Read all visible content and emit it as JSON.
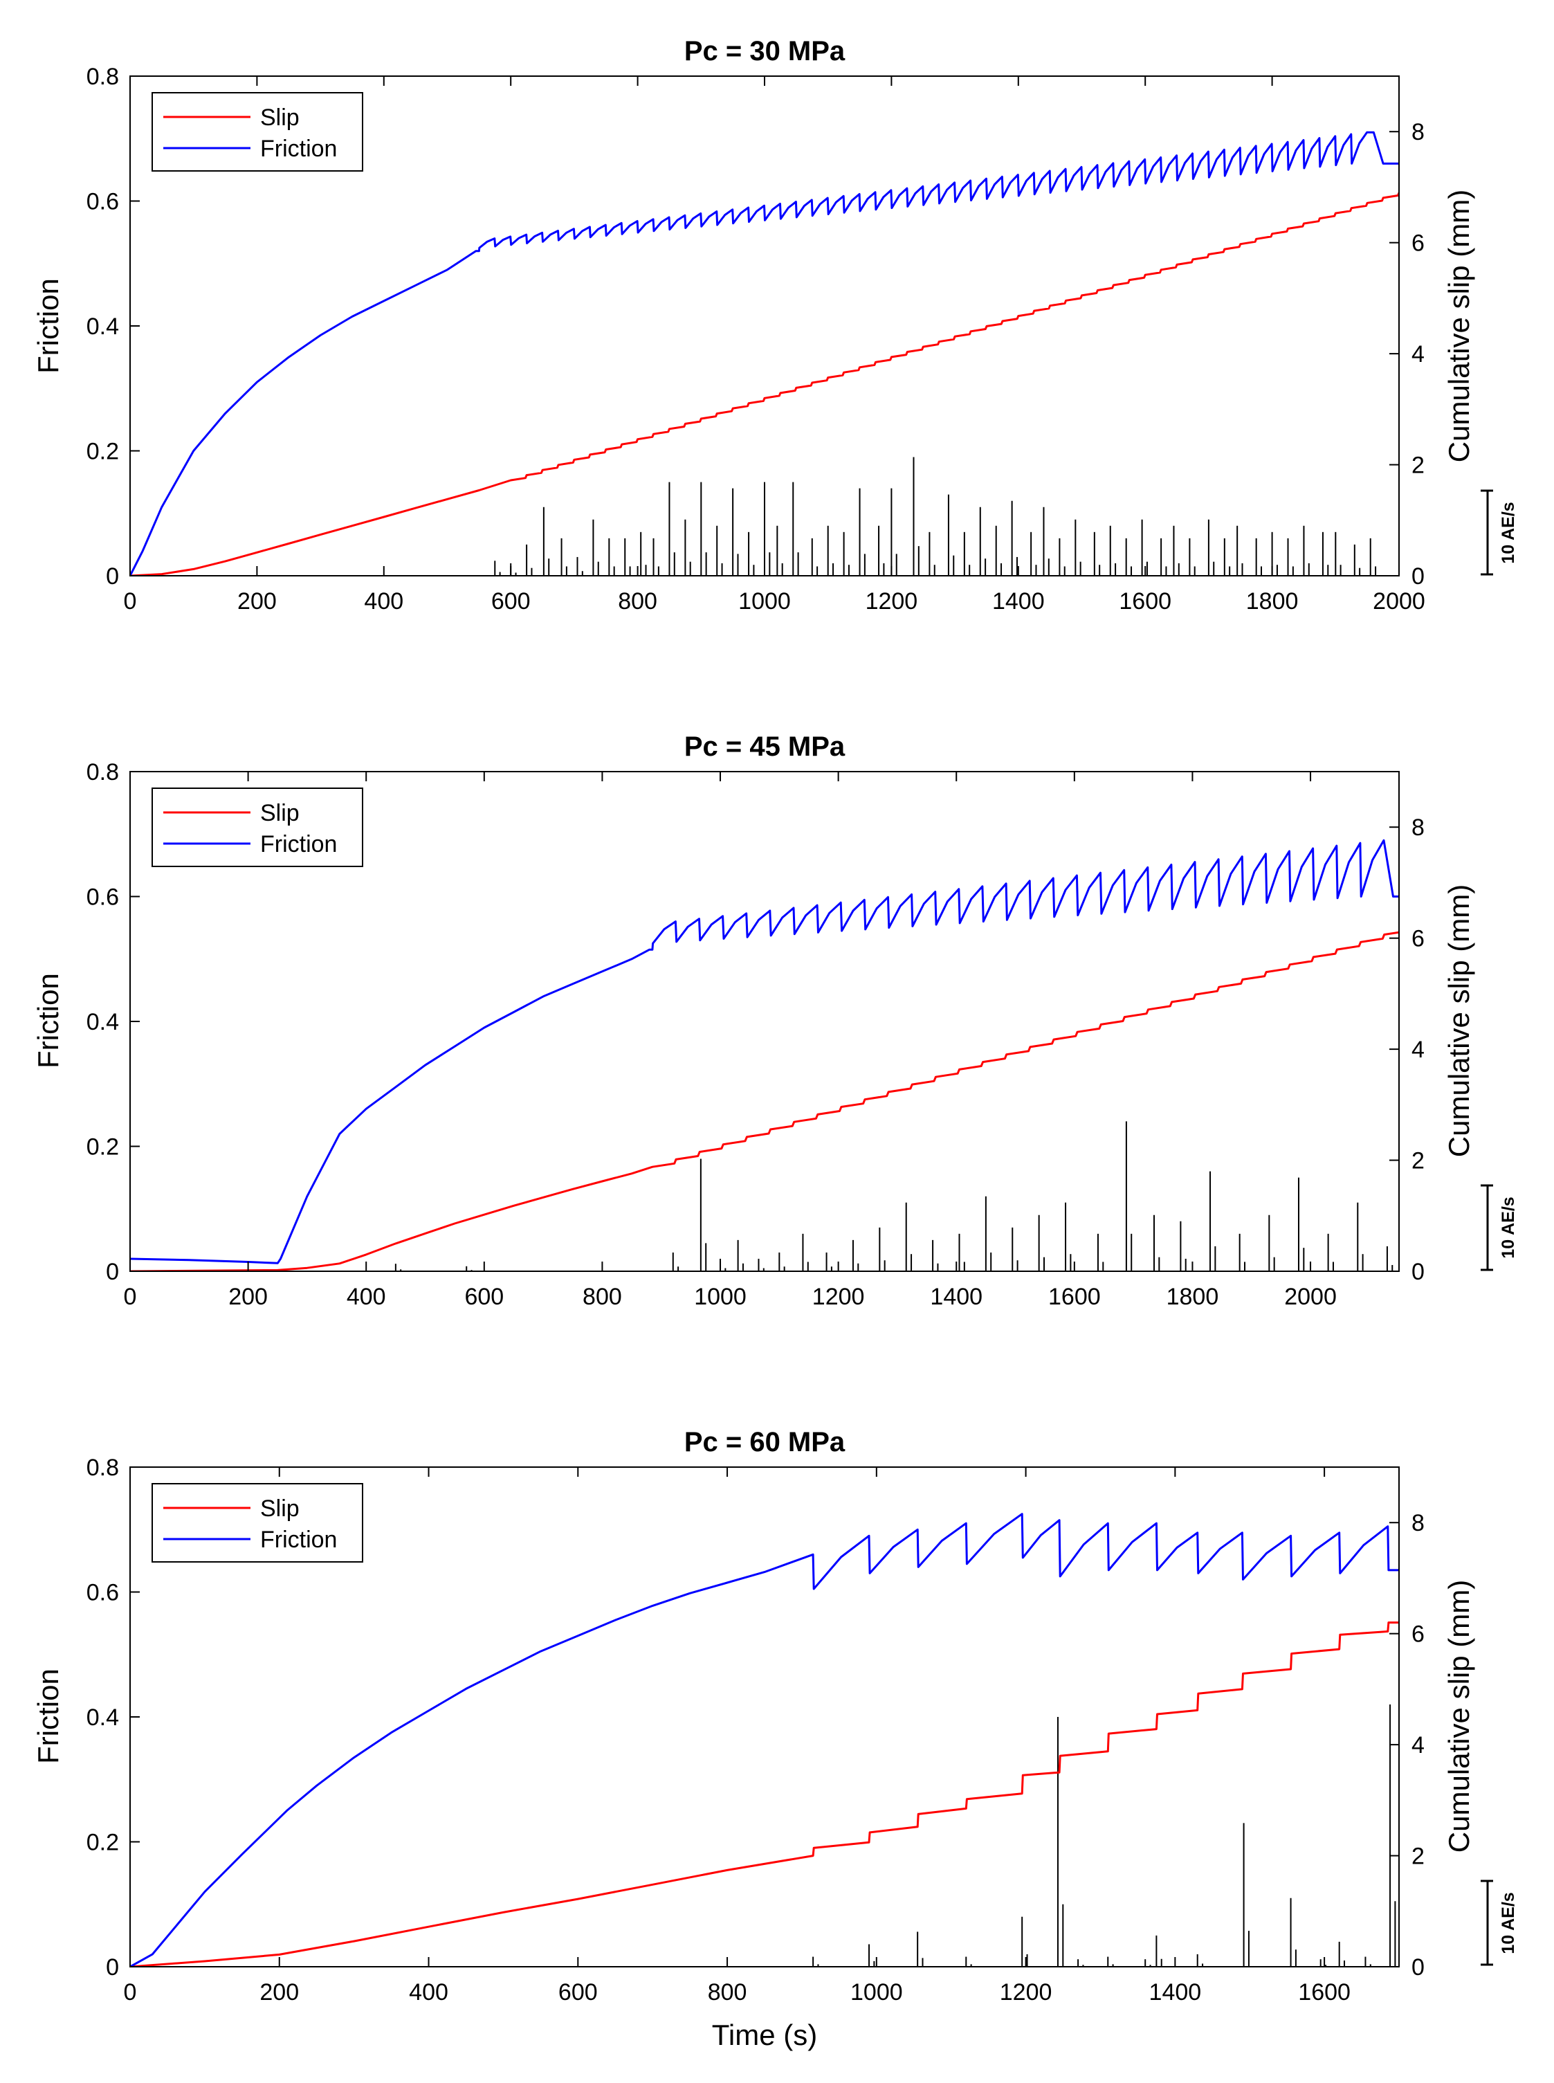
{
  "figure": {
    "shared_xlabel": "Time (s)"
  },
  "chart_data": [
    {
      "type": "line",
      "title": "Pc = 30 MPa",
      "xlabel": "",
      "ylabel": "Friction",
      "y2label": "Cumulative slip (mm)",
      "xlim": [
        0,
        2000
      ],
      "ylim": [
        0,
        0.8
      ],
      "y2lim": [
        0,
        9
      ],
      "xticks": [
        0,
        200,
        400,
        600,
        800,
        1000,
        1200,
        1400,
        1600,
        1800,
        2000
      ],
      "yticks": [
        0,
        0.2,
        0.4,
        0.6,
        0.8
      ],
      "y2ticks": [
        0,
        2,
        4,
        6,
        8
      ],
      "legend": {
        "placement": "top-left",
        "entries": [
          {
            "name": "Slip",
            "color": "#ff0000"
          },
          {
            "name": "Friction",
            "color": "#0000ff"
          }
        ]
      },
      "ae_scale_label": "10 AE/s",
      "ae_scale_value": 10,
      "series": [
        {
          "name": "Friction",
          "axis": "left",
          "color": "#0000ff",
          "x": [
            0,
            20,
            50,
            100,
            150,
            200,
            250,
            300,
            350,
            400,
            450,
            500,
            545,
            550
          ],
          "y": [
            0,
            0.04,
            0.11,
            0.2,
            0.26,
            0.31,
            0.35,
            0.385,
            0.415,
            0.44,
            0.465,
            0.49,
            0.52,
            0.52
          ],
          "stickslip": {
            "start": 550,
            "end": 1960,
            "period": 25,
            "peak_start": 0.54,
            "peak_end": 0.71,
            "drop_start": 0.015,
            "drop_end": 0.05
          },
          "tail": {
            "x": [
              1960,
              1975,
              2000
            ],
            "y": [
              0.71,
              0.66,
              0.66
            ]
          }
        },
        {
          "name": "Slip",
          "axis": "right",
          "color": "#ff0000",
          "x": [
            0,
            50,
            100,
            150,
            200,
            250,
            300,
            350,
            400,
            450,
            500,
            550,
            600
          ],
          "y": [
            0,
            0.03,
            0.12,
            0.26,
            0.42,
            0.58,
            0.74,
            0.9,
            1.06,
            1.22,
            1.38,
            1.54,
            1.72
          ],
          "steps": {
            "start": 600,
            "end": 2000,
            "v_end": 6.9,
            "period": 25
          }
        },
        {
          "name": "AE rate",
          "axis": "ae",
          "color": "#000000",
          "ae_units_per_friction_unit": 50,
          "spikes": [
            {
              "x": 575,
              "y": 1.2
            },
            {
              "x": 600,
              "y": 1.0
            },
            {
              "x": 625,
              "y": 2.5
            },
            {
              "x": 652,
              "y": 5.5
            },
            {
              "x": 680,
              "y": 3.0
            },
            {
              "x": 705,
              "y": 1.5
            },
            {
              "x": 730,
              "y": 4.5
            },
            {
              "x": 755,
              "y": 3.0
            },
            {
              "x": 780,
              "y": 3.0
            },
            {
              "x": 805,
              "y": 3.5
            },
            {
              "x": 825,
              "y": 3.0
            },
            {
              "x": 850,
              "y": 7.5
            },
            {
              "x": 875,
              "y": 4.5
            },
            {
              "x": 900,
              "y": 7.5
            },
            {
              "x": 925,
              "y": 4.0
            },
            {
              "x": 950,
              "y": 7.0
            },
            {
              "x": 975,
              "y": 3.5
            },
            {
              "x": 1000,
              "y": 7.5
            },
            {
              "x": 1020,
              "y": 4.0
            },
            {
              "x": 1045,
              "y": 7.5
            },
            {
              "x": 1075,
              "y": 3.0
            },
            {
              "x": 1100,
              "y": 4.0
            },
            {
              "x": 1125,
              "y": 3.5
            },
            {
              "x": 1150,
              "y": 7.0
            },
            {
              "x": 1180,
              "y": 4.0
            },
            {
              "x": 1200,
              "y": 7.0
            },
            {
              "x": 1235,
              "y": 9.5
            },
            {
              "x": 1260,
              "y": 3.5
            },
            {
              "x": 1290,
              "y": 6.5
            },
            {
              "x": 1315,
              "y": 3.5
            },
            {
              "x": 1340,
              "y": 5.5
            },
            {
              "x": 1365,
              "y": 4.0
            },
            {
              "x": 1390,
              "y": 6.0
            },
            {
              "x": 1420,
              "y": 3.5
            },
            {
              "x": 1440,
              "y": 5.5
            },
            {
              "x": 1465,
              "y": 3.0
            },
            {
              "x": 1490,
              "y": 4.5
            },
            {
              "x": 1520,
              "y": 3.5
            },
            {
              "x": 1545,
              "y": 4.0
            },
            {
              "x": 1570,
              "y": 3.0
            },
            {
              "x": 1595,
              "y": 4.5
            },
            {
              "x": 1625,
              "y": 3.0
            },
            {
              "x": 1645,
              "y": 4.0
            },
            {
              "x": 1670,
              "y": 3.0
            },
            {
              "x": 1700,
              "y": 4.5
            },
            {
              "x": 1725,
              "y": 3.0
            },
            {
              "x": 1745,
              "y": 4.0
            },
            {
              "x": 1775,
              "y": 3.0
            },
            {
              "x": 1800,
              "y": 3.5
            },
            {
              "x": 1825,
              "y": 3.0
            },
            {
              "x": 1850,
              "y": 4.0
            },
            {
              "x": 1880,
              "y": 3.5
            },
            {
              "x": 1900,
              "y": 3.5
            },
            {
              "x": 1930,
              "y": 2.5
            },
            {
              "x": 1955,
              "y": 3.0
            }
          ]
        }
      ]
    },
    {
      "type": "line",
      "title": "Pc = 45 MPa",
      "xlabel": "",
      "ylabel": "Friction",
      "y2label": "Cumulative slip (mm)",
      "xlim": [
        0,
        2150
      ],
      "ylim": [
        0,
        0.8
      ],
      "y2lim": [
        0,
        9
      ],
      "xticks": [
        0,
        200,
        400,
        600,
        800,
        1000,
        1200,
        1400,
        1600,
        1800,
        2000
      ],
      "yticks": [
        0,
        0.2,
        0.4,
        0.6,
        0.8
      ],
      "y2ticks": [
        0,
        2,
        4,
        6,
        8
      ],
      "legend": {
        "placement": "top-left",
        "entries": [
          {
            "name": "Slip",
            "color": "#ff0000"
          },
          {
            "name": "Friction",
            "color": "#0000ff"
          }
        ]
      },
      "ae_scale_label": "10 AE/s",
      "ae_scale_value": 10,
      "series": [
        {
          "name": "Friction",
          "axis": "left",
          "color": "#0000ff",
          "x": [
            0,
            100,
            200,
            250,
            255,
            300,
            355,
            400,
            450,
            500,
            550,
            600,
            650,
            700,
            750,
            800,
            850,
            880,
            885
          ],
          "y": [
            0.02,
            0.018,
            0.015,
            0.013,
            0.02,
            0.12,
            0.22,
            0.26,
            0.295,
            0.33,
            0.36,
            0.39,
            0.415,
            0.44,
            0.46,
            0.48,
            0.5,
            0.515,
            0.515
          ],
          "stickslip": {
            "start": 885,
            "end": 2140,
            "period": 40,
            "peak_start": 0.56,
            "peak_end": 0.69,
            "drop_start": 0.035,
            "drop_end": 0.09
          },
          "tail": {
            "x": [
              2140,
              2150
            ],
            "y": [
              0.6,
              0.6
            ]
          }
        },
        {
          "name": "Slip",
          "axis": "right",
          "color": "#ff0000",
          "x": [
            0,
            250,
            300,
            355,
            400,
            450,
            500,
            550,
            600,
            650,
            700,
            750,
            800,
            850,
            885
          ],
          "y": [
            0,
            0.02,
            0.06,
            0.14,
            0.3,
            0.5,
            0.68,
            0.86,
            1.02,
            1.18,
            1.33,
            1.48,
            1.62,
            1.76,
            1.88
          ],
          "steps": {
            "start": 885,
            "end": 2150,
            "v_end": 6.2,
            "period": 40
          }
        },
        {
          "name": "AE rate",
          "axis": "ae",
          "color": "#000000",
          "ae_units_per_friction_unit": 50,
          "spikes": [
            {
              "x": 450,
              "y": 0.6
            },
            {
              "x": 570,
              "y": 0.4
            },
            {
              "x": 920,
              "y": 1.5
            },
            {
              "x": 967,
              "y": 9.0
            },
            {
              "x": 1000,
              "y": 1.0
            },
            {
              "x": 1030,
              "y": 2.5
            },
            {
              "x": 1065,
              "y": 1.0
            },
            {
              "x": 1100,
              "y": 1.5
            },
            {
              "x": 1140,
              "y": 3.0
            },
            {
              "x": 1180,
              "y": 1.5
            },
            {
              "x": 1225,
              "y": 2.5
            },
            {
              "x": 1270,
              "y": 3.5
            },
            {
              "x": 1315,
              "y": 5.5
            },
            {
              "x": 1360,
              "y": 2.5
            },
            {
              "x": 1405,
              "y": 3.0
            },
            {
              "x": 1450,
              "y": 6.0
            },
            {
              "x": 1495,
              "y": 3.5
            },
            {
              "x": 1540,
              "y": 4.5
            },
            {
              "x": 1585,
              "y": 5.5
            },
            {
              "x": 1640,
              "y": 3.0
            },
            {
              "x": 1688,
              "y": 12.0
            },
            {
              "x": 1735,
              "y": 4.5
            },
            {
              "x": 1780,
              "y": 4.0
            },
            {
              "x": 1830,
              "y": 8.0
            },
            {
              "x": 1880,
              "y": 3.0
            },
            {
              "x": 1930,
              "y": 4.5
            },
            {
              "x": 1980,
              "y": 7.5
            },
            {
              "x": 2030,
              "y": 3.0
            },
            {
              "x": 2080,
              "y": 5.5
            },
            {
              "x": 2130,
              "y": 2.0
            }
          ]
        }
      ]
    },
    {
      "type": "line",
      "title": "Pc = 60 MPa",
      "xlabel": "Time (s)",
      "ylabel": "Friction",
      "y2label": "Cumulative slip (mm)",
      "xlim": [
        0,
        1700
      ],
      "ylim": [
        0,
        0.8
      ],
      "y2lim": [
        0,
        9
      ],
      "xticks": [
        0,
        200,
        400,
        600,
        800,
        1000,
        1200,
        1400,
        1600
      ],
      "yticks": [
        0,
        0.2,
        0.4,
        0.6,
        0.8
      ],
      "y2ticks": [
        0,
        2,
        4,
        6,
        8
      ],
      "legend": {
        "placement": "top-left",
        "entries": [
          {
            "name": "Slip",
            "color": "#ff0000"
          },
          {
            "name": "Friction",
            "color": "#0000ff"
          }
        ]
      },
      "ae_scale_label": "10 AE/s",
      "ae_scale_value": 10,
      "series": [
        {
          "name": "Friction",
          "axis": "left",
          "color": "#0000ff",
          "x": [
            0,
            30,
            100,
            150,
            210,
            250,
            300,
            350,
            400,
            450,
            500,
            550,
            600,
            650,
            700,
            750,
            800,
            850,
            915
          ],
          "y": [
            0,
            0.02,
            0.12,
            0.18,
            0.25,
            0.29,
            0.335,
            0.375,
            0.41,
            0.445,
            0.475,
            0.505,
            0.53,
            0.555,
            0.578,
            0.598,
            0.615,
            0.632,
            0.66
          ],
          "stickslip_events": [
            {
              "x": 915,
              "peak": 0.66,
              "trough": 0.605
            },
            {
              "x": 990,
              "peak": 0.69,
              "trough": 0.63
            },
            {
              "x": 1055,
              "peak": 0.7,
              "trough": 0.64
            },
            {
              "x": 1120,
              "peak": 0.71,
              "trough": 0.645
            },
            {
              "x": 1195,
              "peak": 0.725,
              "trough": 0.655
            },
            {
              "x": 1245,
              "peak": 0.715,
              "trough": 0.625
            },
            {
              "x": 1310,
              "peak": 0.71,
              "trough": 0.635
            },
            {
              "x": 1375,
              "peak": 0.71,
              "trough": 0.635
            },
            {
              "x": 1430,
              "peak": 0.695,
              "trough": 0.63
            },
            {
              "x": 1490,
              "peak": 0.695,
              "trough": 0.62
            },
            {
              "x": 1555,
              "peak": 0.69,
              "trough": 0.625
            },
            {
              "x": 1620,
              "peak": 0.695,
              "trough": 0.63
            },
            {
              "x": 1685,
              "peak": 0.705,
              "trough": 0.635
            }
          ],
          "tail": {
            "x": [
              1700
            ],
            "y": [
              0.635
            ]
          }
        },
        {
          "name": "Slip",
          "axis": "right",
          "color": "#ff0000",
          "x": [
            0,
            100,
            200,
            300,
            400,
            500,
            600,
            700,
            800,
            915
          ],
          "y": [
            0,
            0.1,
            0.22,
            0.46,
            0.72,
            0.98,
            1.22,
            1.48,
            1.74,
            2.0
          ],
          "stair_events": [
            {
              "x": 915,
              "before": 2.0,
              "after": 2.14
            },
            {
              "x": 990,
              "before": 2.24,
              "after": 2.42
            },
            {
              "x": 1055,
              "before": 2.52,
              "after": 2.75
            },
            {
              "x": 1120,
              "before": 2.85,
              "after": 3.02
            },
            {
              "x": 1195,
              "before": 3.12,
              "after": 3.45
            },
            {
              "x": 1245,
              "before": 3.5,
              "after": 3.8
            },
            {
              "x": 1310,
              "before": 3.88,
              "after": 4.2
            },
            {
              "x": 1375,
              "before": 4.28,
              "after": 4.55
            },
            {
              "x": 1430,
              "before": 4.62,
              "after": 4.92
            },
            {
              "x": 1490,
              "before": 5.0,
              "after": 5.28
            },
            {
              "x": 1555,
              "before": 5.36,
              "after": 5.64
            },
            {
              "x": 1620,
              "before": 5.72,
              "after": 5.98
            },
            {
              "x": 1685,
              "before": 6.04,
              "after": 6.2
            }
          ],
          "tail": {
            "x": [
              1700
            ],
            "y": [
              6.2
            ]
          }
        },
        {
          "name": "AE rate",
          "axis": "ae",
          "color": "#000000",
          "ae_units_per_friction_unit": 50,
          "spikes": [
            {
              "x": 915,
              "y": 0.8
            },
            {
              "x": 990,
              "y": 1.8
            },
            {
              "x": 1055,
              "y": 2.8
            },
            {
              "x": 1120,
              "y": 0.8
            },
            {
              "x": 1195,
              "y": 4.0
            },
            {
              "x": 1243,
              "y": 20.0
            },
            {
              "x": 1270,
              "y": 0.6
            },
            {
              "x": 1310,
              "y": 0.8
            },
            {
              "x": 1360,
              "y": 0.6
            },
            {
              "x": 1375,
              "y": 2.5
            },
            {
              "x": 1430,
              "y": 1.0
            },
            {
              "x": 1492,
              "y": 11.5
            },
            {
              "x": 1555,
              "y": 5.5
            },
            {
              "x": 1595,
              "y": 0.6
            },
            {
              "x": 1620,
              "y": 2.0
            },
            {
              "x": 1655,
              "y": 0.8
            },
            {
              "x": 1688,
              "y": 21.0
            }
          ]
        }
      ]
    }
  ]
}
